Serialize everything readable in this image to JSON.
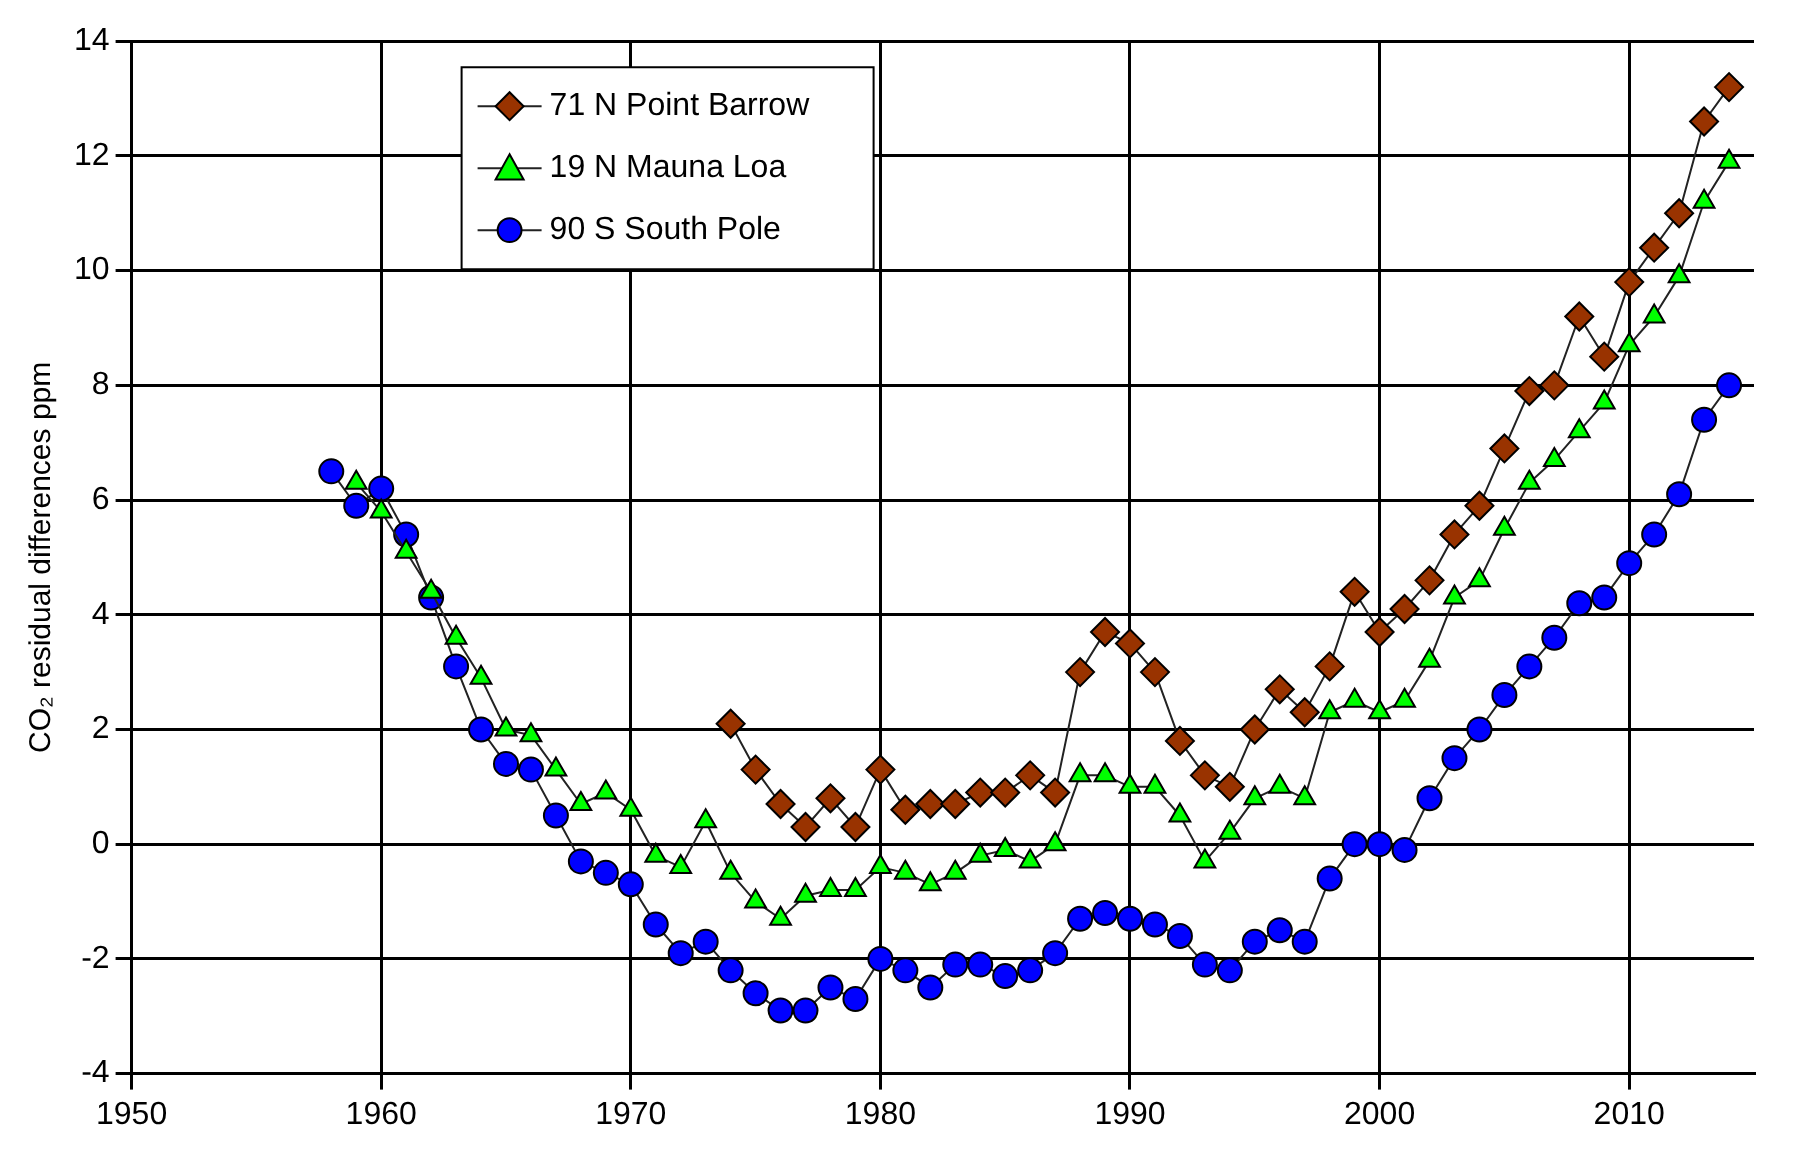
{
  "chart_data": {
    "type": "line",
    "ylabel": "CO₂ residual differences ppm",
    "xlim": [
      1950,
      2015
    ],
    "xticks": [
      1950,
      1960,
      1970,
      1980,
      1990,
      2000,
      2010
    ],
    "ylim": [
      -4,
      14
    ],
    "yticks": [
      -4,
      -2,
      0,
      2,
      4,
      6,
      8,
      10,
      12,
      14
    ],
    "grid": true,
    "legend": "top left",
    "series": [
      {
        "name": "71 N Point Barrow",
        "color": "#993300",
        "marker": "diamond",
        "x": [
          1974,
          1975,
          1976,
          1977,
          1978,
          1979,
          1980,
          1981,
          1982,
          1983,
          1984,
          1985,
          1986,
          1987,
          1988,
          1989,
          1990,
          1991,
          1992,
          1993,
          1994,
          1995,
          1996,
          1997,
          1998,
          1999,
          2000,
          2001,
          2002,
          2003,
          2004,
          2005,
          2006,
          2007,
          2008,
          2009,
          2010,
          2011,
          2012,
          2013,
          2014
        ],
        "values": [
          2.1,
          1.3,
          0.7,
          0.3,
          0.8,
          0.3,
          1.3,
          0.6,
          0.7,
          0.7,
          0.9,
          0.9,
          1.2,
          0.9,
          3.0,
          3.7,
          3.5,
          3.0,
          1.8,
          1.2,
          1.0,
          2.0,
          2.7,
          2.3,
          3.1,
          4.4,
          3.7,
          4.1,
          4.6,
          5.4,
          5.9,
          6.9,
          7.9,
          8.0,
          9.2,
          8.5,
          9.8,
          10.4,
          11.0,
          12.6,
          13.2
        ]
      },
      {
        "name": "19 N Mauna Loa",
        "color": "#00ff00",
        "marker": "triangle",
        "x": [
          1959,
          1960,
          1961,
          1962,
          1963,
          1964,
          1965,
          1966,
          1967,
          1968,
          1969,
          1970,
          1971,
          1972,
          1973,
          1974,
          1975,
          1976,
          1977,
          1978,
          1979,
          1980,
          1981,
          1982,
          1983,
          1984,
          1985,
          1986,
          1987,
          1988,
          1989,
          1990,
          1991,
          1992,
          1993,
          1994,
          1995,
          1996,
          1997,
          1998,
          1999,
          2000,
          2001,
          2002,
          2003,
          2004,
          2005,
          2006,
          2007,
          2008,
          2009,
          2010,
          2011,
          2012,
          2013,
          2014
        ],
        "values": [
          6.3,
          5.8,
          5.1,
          4.4,
          3.6,
          2.9,
          2.0,
          1.9,
          1.3,
          0.7,
          0.9,
          0.6,
          -0.2,
          -0.4,
          0.4,
          -0.5,
          -1.0,
          -1.3,
          -0.9,
          -0.8,
          -0.8,
          -0.4,
          -0.5,
          -0.7,
          -0.5,
          -0.2,
          -0.1,
          -0.3,
          0.0,
          1.2,
          1.2,
          1.0,
          1.0,
          0.5,
          -0.3,
          0.2,
          0.8,
          1.0,
          0.8,
          2.3,
          2.5,
          2.3,
          2.5,
          3.2,
          4.3,
          4.6,
          5.5,
          6.3,
          6.7,
          7.2,
          7.7,
          8.7,
          9.2,
          9.9,
          11.2,
          11.9
        ]
      },
      {
        "name": "90 S South Pole",
        "color": "#0000ff",
        "marker": "circle",
        "x": [
          1958,
          1959,
          1960,
          1961,
          1962,
          1963,
          1964,
          1965,
          1966,
          1967,
          1968,
          1969,
          1970,
          1971,
          1972,
          1973,
          1974,
          1975,
          1976,
          1977,
          1978,
          1979,
          1980,
          1981,
          1982,
          1983,
          1984,
          1985,
          1986,
          1987,
          1988,
          1989,
          1990,
          1991,
          1992,
          1993,
          1994,
          1995,
          1996,
          1997,
          1998,
          1999,
          2000,
          2001,
          2002,
          2003,
          2004,
          2005,
          2006,
          2007,
          2008,
          2009,
          2010,
          2011,
          2012,
          2013,
          2014
        ],
        "values": [
          6.5,
          5.9,
          6.2,
          5.4,
          4.3,
          3.1,
          2.0,
          1.4,
          1.3,
          0.5,
          -0.3,
          -0.5,
          -0.7,
          -1.4,
          -1.9,
          -1.7,
          -2.2,
          -2.6,
          -2.9,
          -2.9,
          -2.5,
          -2.7,
          -2.0,
          -2.2,
          -2.5,
          -2.1,
          -2.1,
          -2.3,
          -2.2,
          -1.9,
          -1.3,
          -1.2,
          -1.3,
          -1.4,
          -1.6,
          -2.1,
          -2.2,
          -1.7,
          -1.5,
          -1.7,
          -0.6,
          0.0,
          0.0,
          -0.1,
          0.8,
          1.5,
          2.0,
          2.6,
          3.1,
          3.6,
          4.2,
          4.3,
          4.9,
          5.4,
          6.1,
          7.4,
          8.0
        ]
      }
    ]
  }
}
